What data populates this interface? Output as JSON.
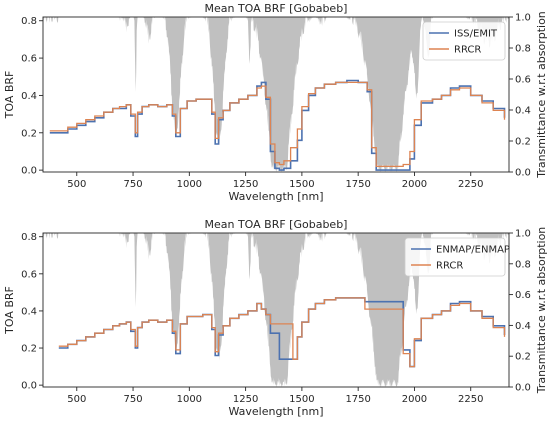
{
  "chart_data": [
    {
      "type": "line",
      "title": "Mean TOA BRF [Gobabeb]",
      "xlabel": "Wavelength [nm]",
      "ylabel": "TOA BRF",
      "y2label": "Transmittance w.r.t absorption",
      "xlim": [
        350,
        2420
      ],
      "ylim": [
        -0.01,
        0.82
      ],
      "y2lim": [
        0.0,
        1.0
      ],
      "xticks": [
        "500",
        "750",
        "1000",
        "1250",
        "1500",
        "1750",
        "2000",
        "2250"
      ],
      "yticks": [
        "0.0",
        "0.2",
        "0.4",
        "0.6",
        "0.8"
      ],
      "y2ticks": [
        "0.0",
        "0.2",
        "0.4",
        "0.6",
        "0.8",
        "1.0"
      ],
      "legend_position": "upper right",
      "background_series": "atmospheric transmittance (grey, right axis)",
      "series": [
        {
          "name": "ISS/EMIT",
          "color": "#4c72b0",
          "x": [
            380,
            420,
            460,
            500,
            540,
            580,
            620,
            660,
            690,
            720,
            740,
            760,
            770,
            790,
            820,
            860,
            900,
            925,
            940,
            960,
            990,
            1030,
            1060,
            1100,
            1115,
            1130,
            1150,
            1180,
            1220,
            1260,
            1300,
            1320,
            1340,
            1360,
            1380,
            1400,
            1420,
            1450,
            1480,
            1500,
            1530,
            1560,
            1600,
            1650,
            1700,
            1750,
            1790,
            1810,
            1830,
            1860,
            1900,
            1950,
            1980,
            2000,
            2030,
            2080,
            2120,
            2160,
            2200,
            2250,
            2300,
            2350,
            2400
          ],
          "y": [
            0.2,
            0.2,
            0.22,
            0.24,
            0.26,
            0.28,
            0.31,
            0.33,
            0.33,
            0.35,
            0.29,
            0.18,
            0.3,
            0.34,
            0.35,
            0.34,
            0.35,
            0.29,
            0.18,
            0.33,
            0.37,
            0.38,
            0.38,
            0.3,
            0.14,
            0.27,
            0.32,
            0.36,
            0.38,
            0.4,
            0.45,
            0.47,
            0.38,
            0.1,
            0.01,
            0.0,
            0.01,
            0.05,
            0.16,
            0.32,
            0.4,
            0.44,
            0.46,
            0.47,
            0.48,
            0.47,
            0.42,
            0.09,
            0.0,
            0.0,
            0.0,
            0.0,
            0.06,
            0.24,
            0.36,
            0.38,
            0.4,
            0.44,
            0.45,
            0.4,
            0.37,
            0.33,
            0.28
          ]
        },
        {
          "name": "RRCR",
          "color": "#dd8452",
          "x": [
            380,
            420,
            460,
            500,
            540,
            580,
            620,
            660,
            690,
            720,
            740,
            760,
            770,
            790,
            820,
            860,
            900,
            925,
            940,
            960,
            990,
            1030,
            1060,
            1100,
            1115,
            1130,
            1150,
            1180,
            1220,
            1260,
            1300,
            1320,
            1340,
            1360,
            1380,
            1400,
            1420,
            1450,
            1480,
            1500,
            1530,
            1560,
            1600,
            1650,
            1700,
            1750,
            1790,
            1810,
            1830,
            1860,
            1900,
            1950,
            1980,
            2000,
            2030,
            2080,
            2120,
            2160,
            2200,
            2250,
            2300,
            2350,
            2400
          ],
          "y": [
            0.21,
            0.21,
            0.23,
            0.25,
            0.27,
            0.29,
            0.31,
            0.33,
            0.34,
            0.35,
            0.3,
            0.2,
            0.31,
            0.34,
            0.35,
            0.34,
            0.35,
            0.3,
            0.2,
            0.33,
            0.37,
            0.38,
            0.38,
            0.31,
            0.17,
            0.28,
            0.32,
            0.36,
            0.38,
            0.4,
            0.44,
            0.45,
            0.39,
            0.14,
            0.04,
            0.03,
            0.05,
            0.12,
            0.22,
            0.34,
            0.41,
            0.44,
            0.46,
            0.47,
            0.47,
            0.47,
            0.43,
            0.12,
            0.02,
            0.02,
            0.02,
            0.03,
            0.1,
            0.27,
            0.37,
            0.38,
            0.4,
            0.43,
            0.44,
            0.4,
            0.36,
            0.32,
            0.27
          ]
        }
      ]
    },
    {
      "type": "line",
      "title": "Mean TOA BRF [Gobabeb]",
      "xlabel": "Wavelength [nm]",
      "ylabel": "TOA BRF",
      "y2label": "Transmittance w.r.t absorption",
      "xlim": [
        350,
        2420
      ],
      "ylim": [
        -0.01,
        0.82
      ],
      "y2lim": [
        0.0,
        1.0
      ],
      "xticks": [
        "500",
        "750",
        "1000",
        "1250",
        "1500",
        "1750",
        "2000",
        "2250"
      ],
      "yticks": [
        "0.0",
        "0.2",
        "0.4",
        "0.6",
        "0.8"
      ],
      "y2ticks": [
        "0.0",
        "0.2",
        "0.4",
        "0.6",
        "0.8",
        "1.0"
      ],
      "legend_position": "upper right",
      "background_series": "atmospheric transmittance (grey, right axis)",
      "series": [
        {
          "name": "ENMAP/ENMAP",
          "color": "#4c72b0",
          "x": [
            420,
            460,
            500,
            540,
            580,
            620,
            660,
            690,
            720,
            740,
            760,
            770,
            790,
            820,
            860,
            900,
            925,
            940,
            960,
            990,
            1030,
            1060,
            1100,
            1115,
            1130,
            1150,
            1180,
            1220,
            1260,
            1300,
            1320,
            1340,
            1360,
            1400,
            1460,
            1480,
            1500,
            1530,
            1560,
            1600,
            1650,
            1700,
            1750,
            1780,
            1950,
            1980,
            2000,
            2030,
            2080,
            2120,
            2160,
            2200,
            2250,
            2300,
            2350,
            2400
          ],
          "y": [
            0.2,
            0.22,
            0.24,
            0.26,
            0.28,
            0.3,
            0.32,
            0.33,
            0.34,
            0.29,
            0.2,
            0.31,
            0.34,
            0.35,
            0.34,
            0.35,
            0.28,
            0.17,
            0.33,
            0.37,
            0.37,
            0.38,
            0.3,
            0.16,
            0.27,
            0.32,
            0.36,
            0.38,
            0.4,
            0.44,
            0.41,
            0.38,
            0.28,
            0.14,
            0.14,
            0.26,
            0.34,
            0.41,
            0.44,
            0.46,
            0.47,
            0.47,
            0.47,
            0.45,
            0.19,
            0.1,
            0.24,
            0.36,
            0.38,
            0.4,
            0.44,
            0.45,
            0.4,
            0.37,
            0.32,
            0.27
          ]
        },
        {
          "name": "RRCR",
          "color": "#dd8452",
          "x": [
            420,
            460,
            500,
            540,
            580,
            620,
            660,
            690,
            720,
            740,
            760,
            770,
            790,
            820,
            860,
            900,
            925,
            940,
            960,
            990,
            1030,
            1060,
            1100,
            1115,
            1130,
            1150,
            1180,
            1220,
            1260,
            1300,
            1320,
            1340,
            1360,
            1400,
            1460,
            1480,
            1500,
            1530,
            1560,
            1600,
            1650,
            1700,
            1750,
            1780,
            1870,
            1950,
            1980,
            2000,
            2030,
            2080,
            2120,
            2160,
            2200,
            2250,
            2300,
            2350,
            2400
          ],
          "y": [
            0.21,
            0.22,
            0.24,
            0.26,
            0.28,
            0.3,
            0.32,
            0.33,
            0.34,
            0.3,
            0.21,
            0.31,
            0.34,
            0.35,
            0.34,
            0.35,
            0.29,
            0.19,
            0.33,
            0.37,
            0.37,
            0.38,
            0.31,
            0.18,
            0.28,
            0.32,
            0.36,
            0.38,
            0.4,
            0.44,
            0.41,
            0.38,
            0.33,
            0.33,
            0.14,
            0.26,
            0.34,
            0.41,
            0.44,
            0.46,
            0.47,
            0.47,
            0.47,
            0.41,
            0.41,
            0.17,
            0.1,
            0.25,
            0.36,
            0.38,
            0.4,
            0.43,
            0.44,
            0.4,
            0.36,
            0.31,
            0.26
          ]
        }
      ]
    }
  ]
}
